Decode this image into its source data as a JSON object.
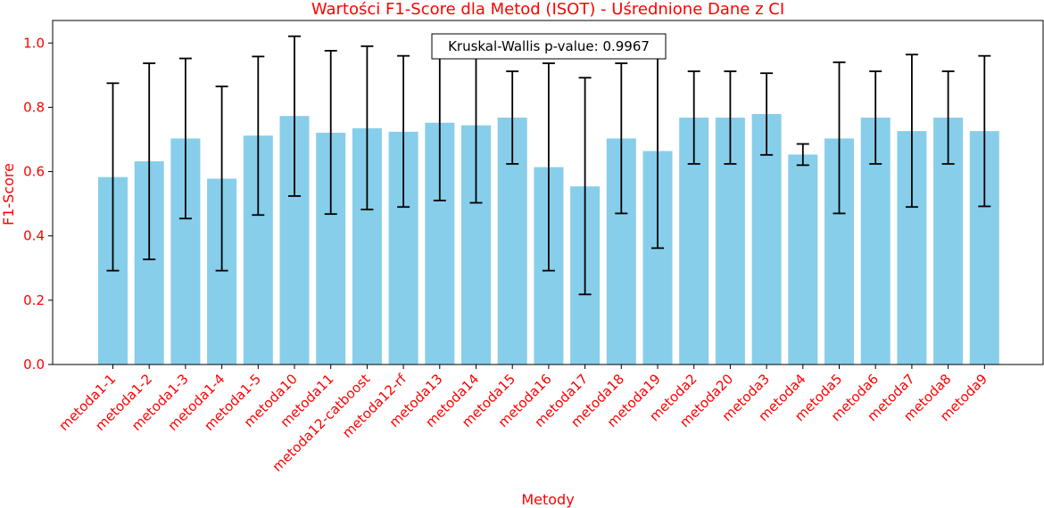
{
  "chart_data": {
    "type": "bar",
    "title": "Wartości F1-Score dla Metod (ISOT) - Uśrednione Dane z CI",
    "xlabel": "Metody",
    "ylabel": "F1-Score",
    "ylim": [
      0,
      1.07
    ],
    "yticks": [
      "0.0",
      "0.2",
      "0.4",
      "0.6",
      "0.8",
      "1.0"
    ],
    "ytick_values": [
      0.0,
      0.2,
      0.4,
      0.6,
      0.8,
      1.0
    ],
    "categories": [
      "metoda1-1",
      "metoda1-2",
      "metoda1-3",
      "metoda1-4",
      "metoda1-5",
      "metoda10",
      "metoda11",
      "metoda12-catboost",
      "metoda12-rf",
      "metoda13",
      "metoda14",
      "metoda15",
      "metoda16",
      "metoda17",
      "metoda18",
      "metoda19",
      "metoda2",
      "metoda20",
      "metoda3",
      "metoda4",
      "metoda5",
      "metoda6",
      "metoda7",
      "metoda8",
      "metoda9"
    ],
    "values": [
      0.583,
      0.632,
      0.703,
      0.578,
      0.712,
      0.773,
      0.721,
      0.735,
      0.724,
      0.752,
      0.744,
      0.768,
      0.614,
      0.554,
      0.703,
      0.664,
      0.768,
      0.768,
      0.779,
      0.653,
      0.703,
      0.768,
      0.726,
      0.768,
      0.726
    ],
    "ci_lower": [
      0.292,
      0.327,
      0.454,
      0.292,
      0.465,
      0.524,
      0.468,
      0.482,
      0.49,
      0.51,
      0.503,
      0.624,
      0.292,
      0.218,
      0.47,
      0.362,
      0.624,
      0.624,
      0.652,
      0.62,
      0.47,
      0.624,
      0.49,
      0.624,
      0.492
    ],
    "ci_upper": [
      0.875,
      0.937,
      0.952,
      0.865,
      0.958,
      1.021,
      0.976,
      0.99,
      0.96,
      0.993,
      0.985,
      0.912,
      0.937,
      0.892,
      0.937,
      0.966,
      0.912,
      0.912,
      0.906,
      0.686,
      0.94,
      0.912,
      0.964,
      0.912,
      0.96
    ],
    "annotation": "Kruskal-Wallis p-value: 0.9967",
    "colors": {
      "bar": "#87ceeb",
      "error_bar": "#000000",
      "labels": "#ff0000",
      "axis": "#000000",
      "annotation_border": "#000000",
      "annotation_bg": "#ffffff"
    },
    "grid": false
  }
}
